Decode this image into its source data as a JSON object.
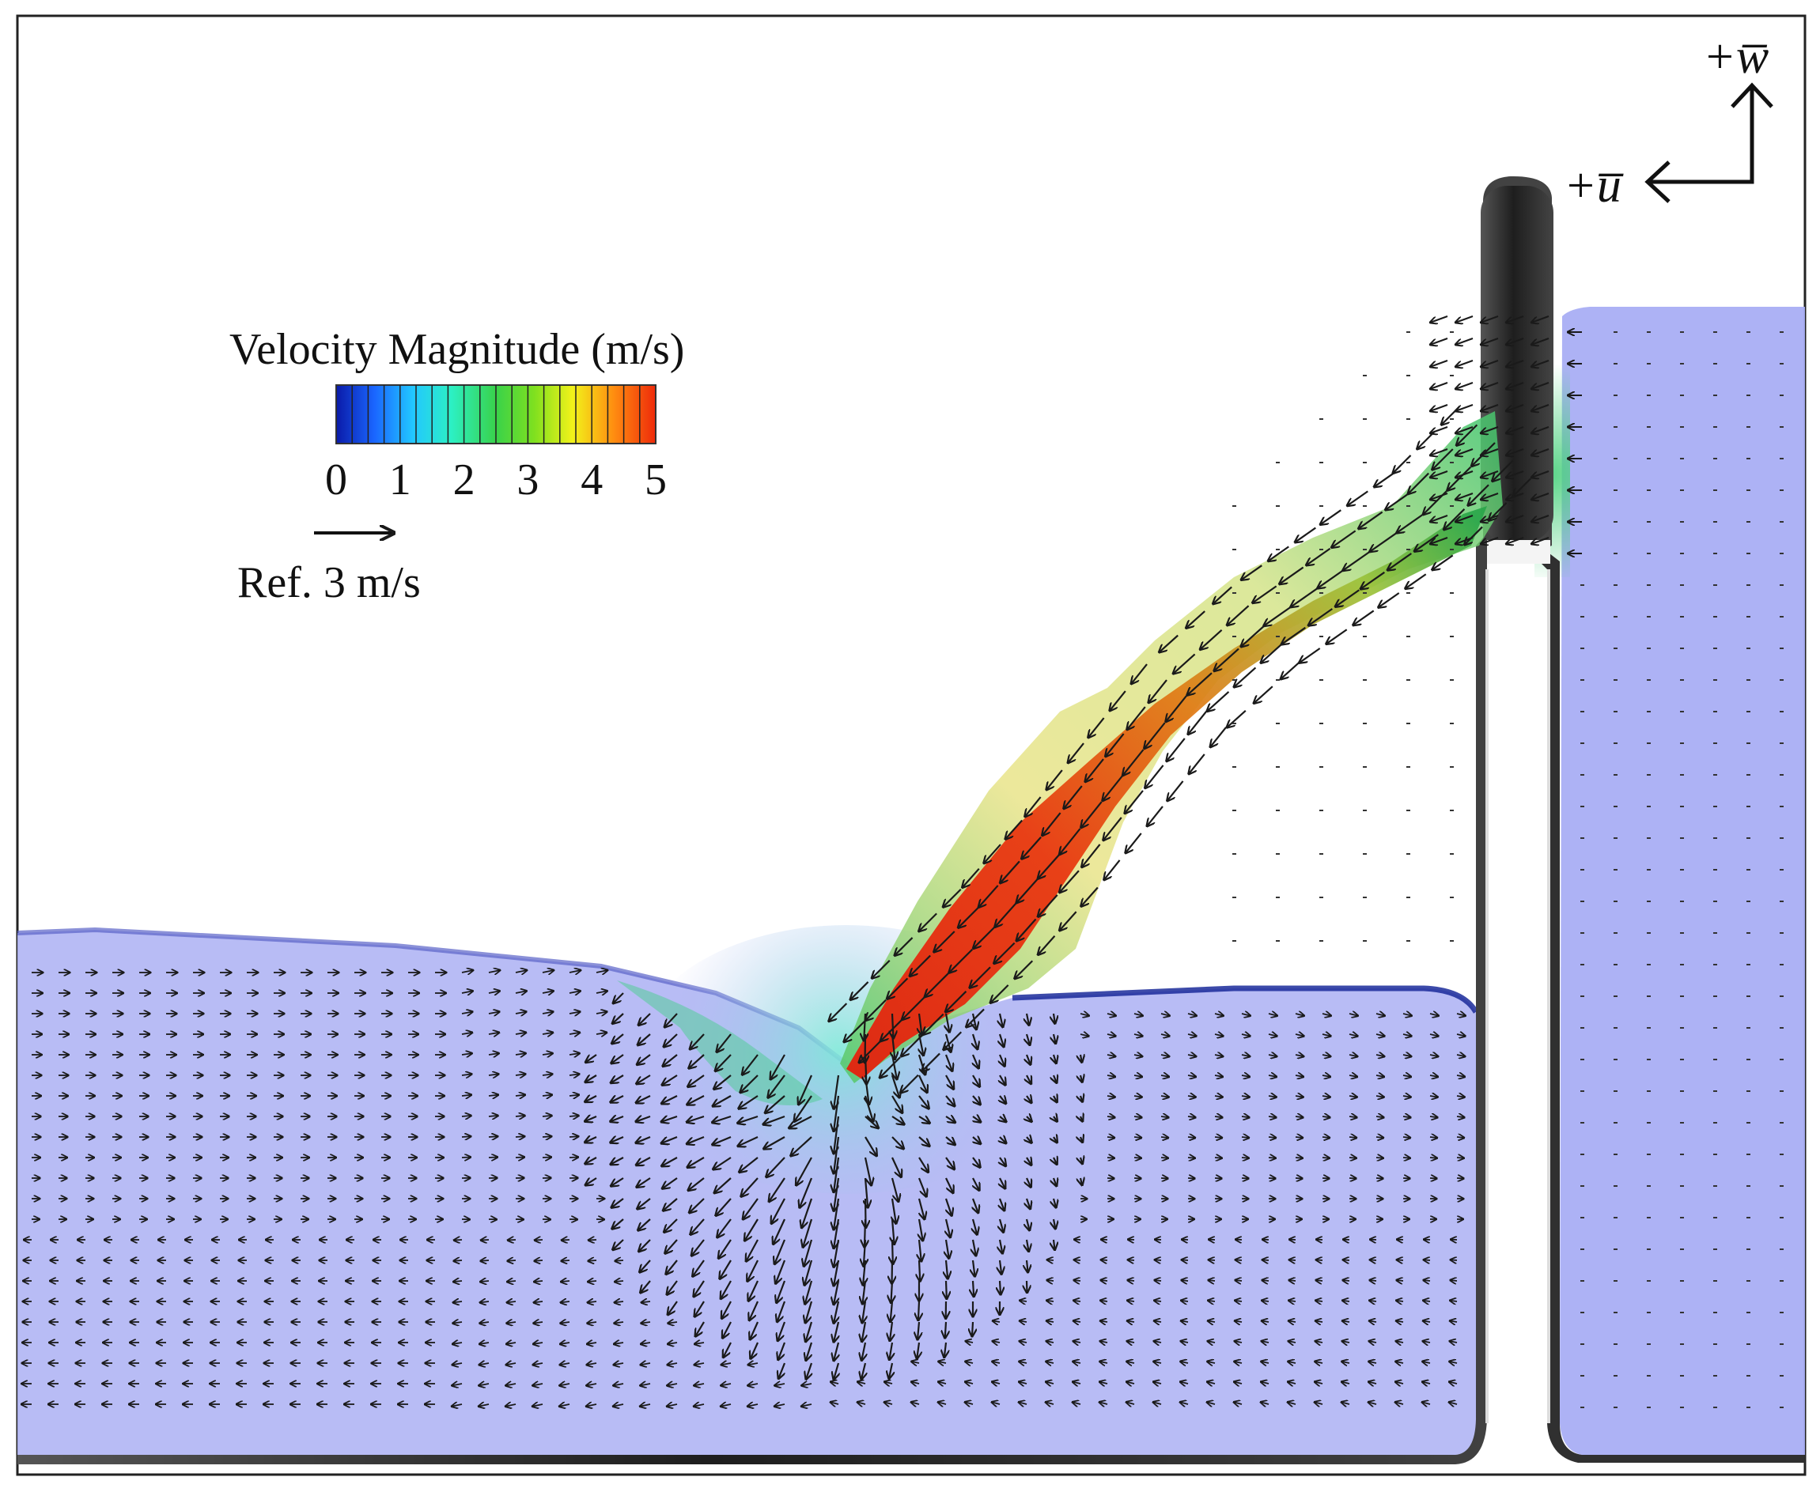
{
  "legend": {
    "title": "Velocity Magnitude (m/s)",
    "ticks": [
      "0",
      "1",
      "2",
      "3",
      "4",
      "5"
    ],
    "range": [
      0,
      5
    ],
    "colormap": [
      "#0a1aa8",
      "#1a66ff",
      "#22c7ff",
      "#2cf0c4",
      "#39d24a",
      "#7fe01f",
      "#f2f21a",
      "#ff8c10",
      "#ee2a0a"
    ]
  },
  "reference_vector": {
    "label": "Ref. 3 m/s",
    "magnitude": 3
  },
  "axes": {
    "u_label": "+u̅",
    "w_label": "+w̅",
    "u_symbol": "u",
    "w_symbol": "w"
  },
  "colors": {
    "water": "#b4b8f4",
    "water_deep": "#9da3f0",
    "wall": "#2b2b2b",
    "arrow": "#1a1a1a",
    "frame": "#222222",
    "jet_core": "#e8200c",
    "jet_mid": "#d8c020",
    "jet_edge": "#3fbf4a"
  }
}
